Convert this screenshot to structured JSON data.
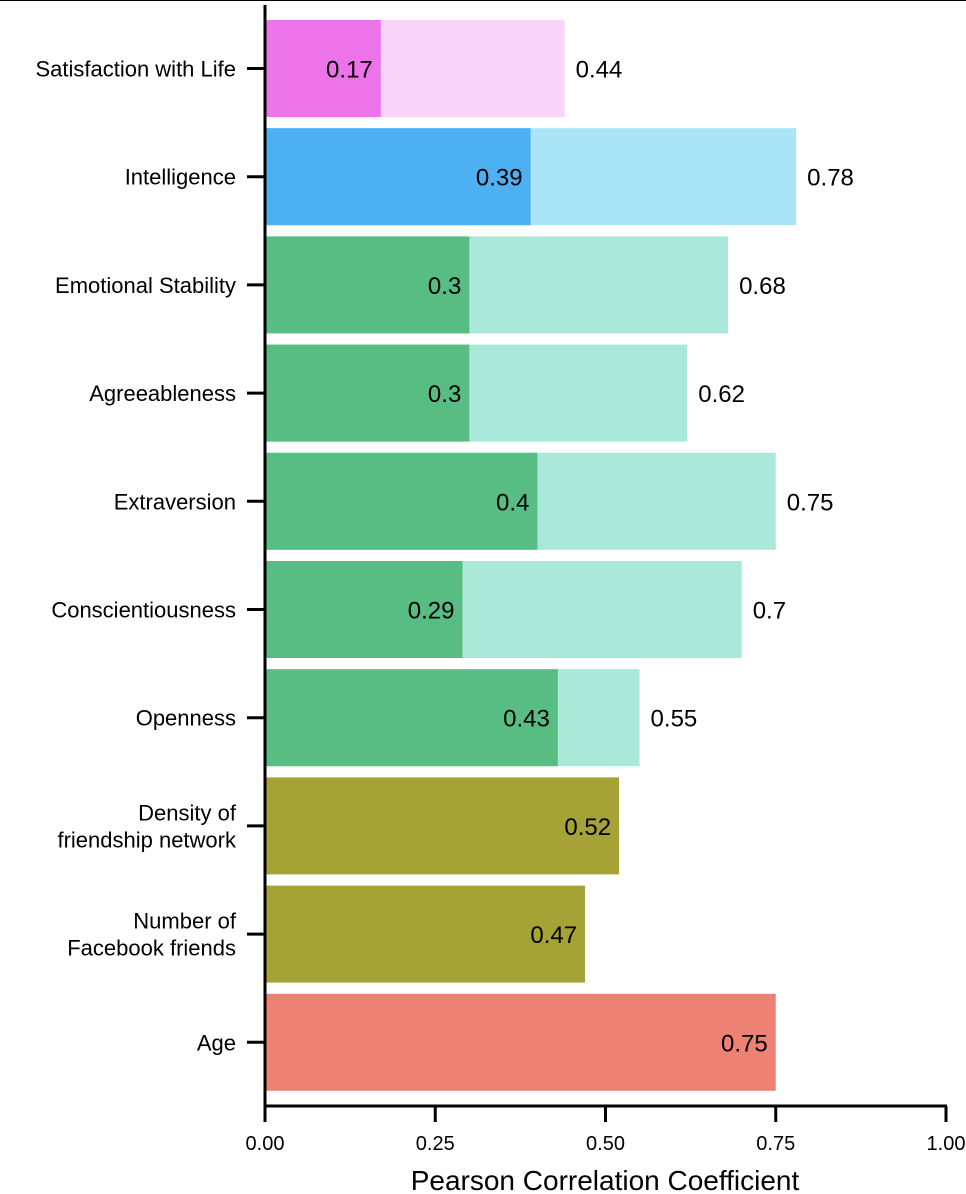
{
  "chart_data": {
    "type": "bar",
    "orientation": "horizontal",
    "xlabel": "Pearson Correlation Coefficient",
    "ylabel": "",
    "xlim": [
      0,
      1
    ],
    "xticks": [
      0,
      0.25,
      0.5,
      0.75,
      1.0
    ],
    "xtick_labels": [
      "0.00",
      "0.25",
      "0.50",
      "0.75",
      "1.00"
    ],
    "grid": false,
    "categories": [
      {
        "label": [
          "Satisfaction with Life"
        ],
        "inner": 0.17,
        "inner_label": "0.17",
        "outer": 0.44,
        "outer_label": "0.44",
        "inner_color": "#ec73e8",
        "outer_color": "#f8d4f7"
      },
      {
        "label": [
          "Intelligence"
        ],
        "inner": 0.39,
        "inner_label": "0.39",
        "outer": 0.78,
        "outer_label": "0.78",
        "inner_color": "#4cb0f2",
        "outer_color": "#a9e5f7"
      },
      {
        "label": [
          "Emotional Stability"
        ],
        "inner": 0.3,
        "inner_label": "0.3",
        "outer": 0.68,
        "outer_label": "0.68",
        "inner_color": "#57bd83",
        "outer_color": "#aae8d9"
      },
      {
        "label": [
          "Agreeableness"
        ],
        "inner": 0.3,
        "inner_label": "0.3",
        "outer": 0.62,
        "outer_label": "0.62",
        "inner_color": "#57bd83",
        "outer_color": "#aae8d9"
      },
      {
        "label": [
          "Extraversion"
        ],
        "inner": 0.4,
        "inner_label": "0.4",
        "outer": 0.75,
        "outer_label": "0.75",
        "inner_color": "#57bd83",
        "outer_color": "#aae8d9"
      },
      {
        "label": [
          "Conscientiousness"
        ],
        "inner": 0.29,
        "inner_label": "0.29",
        "outer": 0.7,
        "outer_label": "0.7",
        "inner_color": "#57bd83",
        "outer_color": "#aae8d9"
      },
      {
        "label": [
          "Openness"
        ],
        "inner": 0.43,
        "inner_label": "0.43",
        "outer": 0.55,
        "outer_label": "0.55",
        "inner_color": "#57bd83",
        "outer_color": "#aae8d9"
      },
      {
        "label": [
          "Density of",
          "friendship network"
        ],
        "inner": 0.52,
        "inner_label": "0.52",
        "outer": null,
        "outer_label": "",
        "inner_color": "#a5a335",
        "outer_color": ""
      },
      {
        "label": [
          "Number of",
          "Facebook friends"
        ],
        "inner": 0.47,
        "inner_label": "0.47",
        "outer": null,
        "outer_label": "",
        "inner_color": "#a5a335",
        "outer_color": ""
      },
      {
        "label": [
          "Age"
        ],
        "inner": 0.75,
        "inner_label": "0.75",
        "outer": null,
        "outer_label": "",
        "inner_color": "#ed8173",
        "outer_color": ""
      }
    ]
  }
}
